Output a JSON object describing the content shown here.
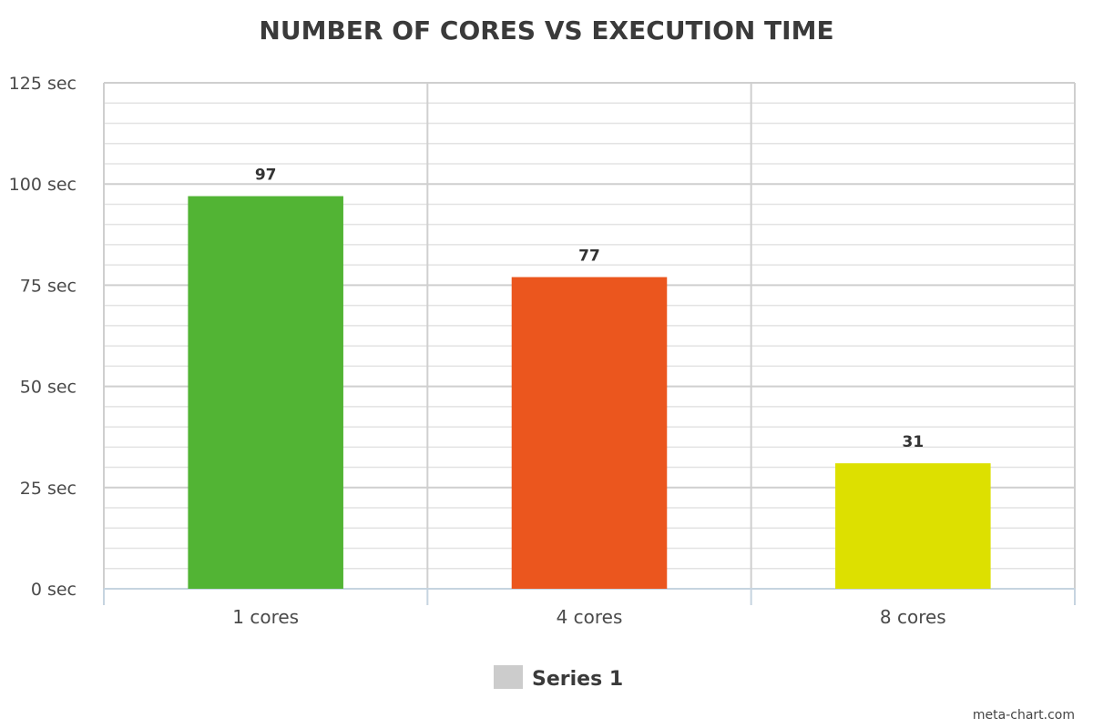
{
  "chart_data": {
    "type": "bar",
    "title": "NUMBER OF CORES VS EXECUTION TIME",
    "xlabel": "",
    "ylabel": "",
    "categories": [
      "1 cores",
      "4 cores",
      "8 cores"
    ],
    "series": [
      {
        "name": "Series 1",
        "values": [
          97,
          77,
          31
        ],
        "data_labels": [
          "97",
          "77",
          "31"
        ],
        "colors": [
          "#52b434",
          "#eb561e",
          "#dde000"
        ]
      }
    ],
    "ylim": [
      0,
      125
    ],
    "yticks": [
      0,
      25,
      50,
      75,
      100,
      125
    ],
    "ytick_labels": [
      "0 sec",
      "25 sec",
      "50 sec",
      "75 sec",
      "100 sec",
      "125 sec"
    ],
    "minor_grid_step": 5,
    "grid": true,
    "legend_position": "bottom-center",
    "legend_swatch_color": "#cccccc"
  },
  "credit": "meta-chart.com"
}
